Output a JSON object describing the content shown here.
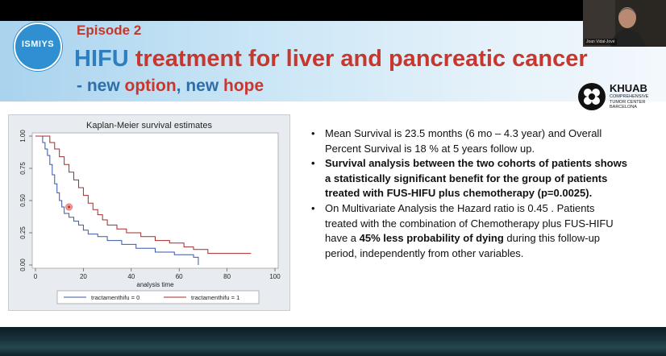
{
  "header": {
    "logo_text": "ISMIYS",
    "episode": "Episode 2",
    "title_part1": "HIFU",
    "title_part2": " treatment for liver and pancreatic cancer",
    "subtitle_part1": "- new ",
    "subtitle_red1": "option",
    "subtitle_part2": ", new ",
    "subtitle_red2": "hope"
  },
  "khuab": {
    "name": "KHUAB",
    "subtitle": "COMPREHENSIVE TUMOR CENTER BARCELONA"
  },
  "webcam": {
    "name": "Joan Vidal-Jové"
  },
  "bullets": [
    {
      "text": "Mean Survival is 23.5 months (6 mo – 4.3 year) and Overall Percent Survival is 18 % at 5 years follow up."
    },
    {
      "text": "Survival analysis between the two cohorts of patients shows a statistically significant benefit for the group of patients treated with FUS-HIFU plus chemotherapy (p=0.0025)."
    },
    {
      "pre": "On Multivariate Analysis the Hazard ratio is 0.45 . Patients treated with the combination of Chemotherapy plus FUS-HIFU have a ",
      "bold": "45% less probability of dying",
      "post": " during this follow-up period, independently from other variables."
    }
  ],
  "colors": {
    "title_blue": "#2e7fbf",
    "title_red": "#c8372d",
    "series0": "#3a56a5",
    "series1": "#a52a2a"
  },
  "chart_data": {
    "type": "line",
    "title": "Kaplan-Meier survival estimates",
    "xlabel": "analysis time",
    "ylabel": "",
    "xlim": [
      0,
      100
    ],
    "ylim": [
      0,
      1
    ],
    "xticks": [
      0,
      20,
      40,
      60,
      80,
      100
    ],
    "yticks": [
      "0.00",
      "0.25",
      "0.50",
      "0.75",
      "1.00"
    ],
    "series": [
      {
        "name": "tractamenthifu = 0",
        "color": "#3a56a5",
        "points": [
          [
            0,
            1
          ],
          [
            2,
            1
          ],
          [
            3,
            0.95
          ],
          [
            4,
            0.9
          ],
          [
            5,
            0.85
          ],
          [
            6,
            0.78
          ],
          [
            7,
            0.7
          ],
          [
            8,
            0.63
          ],
          [
            9,
            0.56
          ],
          [
            10,
            0.5
          ],
          [
            11,
            0.45
          ],
          [
            12,
            0.4
          ],
          [
            14,
            0.37
          ],
          [
            16,
            0.34
          ],
          [
            18,
            0.31
          ],
          [
            20,
            0.27
          ],
          [
            22,
            0.24
          ],
          [
            26,
            0.22
          ],
          [
            30,
            0.19
          ],
          [
            36,
            0.16
          ],
          [
            42,
            0.13
          ],
          [
            50,
            0.1
          ],
          [
            58,
            0.08
          ],
          [
            66,
            0.06
          ],
          [
            68,
            0.0
          ]
        ]
      },
      {
        "name": "tractamenthifu = 1",
        "color": "#a52a2a",
        "points": [
          [
            0,
            1
          ],
          [
            5,
            1
          ],
          [
            6,
            0.95
          ],
          [
            8,
            0.9
          ],
          [
            10,
            0.84
          ],
          [
            12,
            0.78
          ],
          [
            14,
            0.72
          ],
          [
            16,
            0.66
          ],
          [
            18,
            0.6
          ],
          [
            20,
            0.54
          ],
          [
            22,
            0.48
          ],
          [
            24,
            0.43
          ],
          [
            26,
            0.39
          ],
          [
            28,
            0.35
          ],
          [
            30,
            0.31
          ],
          [
            34,
            0.28
          ],
          [
            38,
            0.25
          ],
          [
            44,
            0.22
          ],
          [
            50,
            0.19
          ],
          [
            56,
            0.17
          ],
          [
            62,
            0.14
          ],
          [
            66,
            0.12
          ],
          [
            72,
            0.09
          ],
          [
            90,
            0.09
          ]
        ]
      }
    ],
    "marker": {
      "x": 14,
      "y": 0.45
    }
  }
}
